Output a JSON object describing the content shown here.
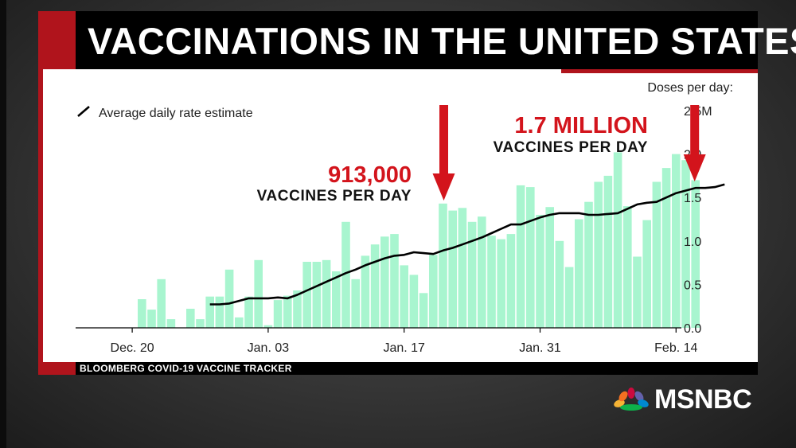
{
  "title": "VACCINATIONS IN THE UNITED STATES",
  "source": "BLOOMBERG COVID-19 VACCINE TRACKER",
  "network": "MSNBC",
  "colors": {
    "bar": "#a8f5cf",
    "line": "#000000",
    "accent": "#b0141c",
    "annotation": "#d3141c"
  },
  "chart_data": {
    "type": "bar",
    "title": "VACCINATIONS IN THE UNITED STATES",
    "ylabel": "Doses per day:",
    "y_ticks": [
      "2.5M",
      "2.0",
      "1.5",
      "1.0",
      "0.5",
      "0.0"
    ],
    "y_tick_values": [
      2.5,
      2.0,
      1.5,
      1.0,
      0.5,
      0.0
    ],
    "ylim": [
      0,
      2.5
    ],
    "y_unit": "millions of doses",
    "x_tick_labels": [
      "Dec. 20",
      "Jan. 03",
      "Jan. 17",
      "Jan. 31",
      "Feb. 14"
    ],
    "x_tick_dates": [
      "2020-12-20",
      "2021-01-03",
      "2021-01-17",
      "2021-01-31",
      "2021-02-14"
    ],
    "start_date": "2020-12-20",
    "legend": {
      "label": "Average daily rate estimate",
      "position": "top-left"
    },
    "grid": false,
    "series": [
      {
        "name": "Doses per day",
        "type": "bar",
        "values": [
          0,
          0.33,
          0.21,
          0.56,
          0.1,
          0,
          0.22,
          0.1,
          0.36,
          0.36,
          0.67,
          0.12,
          0.36,
          0.78,
          0.03,
          0.32,
          0.37,
          0.43,
          0.76,
          0.76,
          0.78,
          0.65,
          1.22,
          0.56,
          0.83,
          0.96,
          1.05,
          1.08,
          0.72,
          0.61,
          0.4,
          0.84,
          1.43,
          1.35,
          1.38,
          1.22,
          1.28,
          1.06,
          1.02,
          1.08,
          1.64,
          1.62,
          1.3,
          1.39,
          1.0,
          0.7,
          1.25,
          1.45,
          1.68,
          1.75,
          2.02,
          1.4,
          0.82,
          1.24,
          1.68,
          1.84,
          2.0,
          1.93,
          1.7
        ]
      },
      {
        "name": "Average daily rate estimate",
        "type": "line",
        "x_start_index": 8,
        "values": [
          0.27,
          0.27,
          0.28,
          0.31,
          0.34,
          0.34,
          0.34,
          0.35,
          0.34,
          0.38,
          0.43,
          0.48,
          0.53,
          0.58,
          0.63,
          0.67,
          0.72,
          0.76,
          0.8,
          0.83,
          0.84,
          0.87,
          0.86,
          0.85,
          0.89,
          0.92,
          0.96,
          1.0,
          1.04,
          1.09,
          1.14,
          1.19,
          1.19,
          1.23,
          1.27,
          1.3,
          1.32,
          1.32,
          1.32,
          1.3,
          1.3,
          1.31,
          1.32,
          1.37,
          1.42,
          1.44,
          1.45,
          1.5,
          1.55,
          1.58,
          1.61,
          1.61,
          1.62,
          1.65
        ]
      }
    ],
    "annotations": [
      {
        "value": "913,000",
        "label": "VACCINES PER DAY",
        "arrow_index": 32
      },
      {
        "value": "1.7 MILLION",
        "label": "VACCINES PER DAY",
        "arrow_index": 58
      }
    ]
  }
}
